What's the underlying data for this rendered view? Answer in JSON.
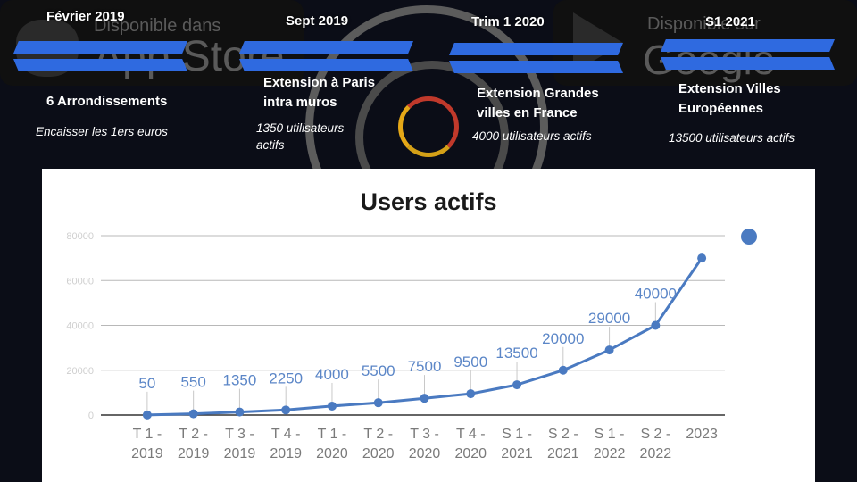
{
  "badges": {
    "apple": {
      "subtitle": "Disponible dans",
      "store": "App Store",
      "icon": "apple-logo-icon"
    },
    "google": {
      "subtitle": "Disponible sur",
      "store": "Google play",
      "icon": "google-play-logo-icon"
    }
  },
  "timeline": [
    {
      "date": "Février 2019",
      "title": "6 Arrondissements",
      "note": "Encaisser les 1ers euros"
    },
    {
      "date": "Sept 2019",
      "title": "Extension à Paris intra muros",
      "note": "1350 utilisateurs actifs"
    },
    {
      "date": "Trim 1 2020",
      "title": "Extension Grandes villes en France",
      "note": "4000 utilisateurs actifs"
    },
    {
      "date": "S1 2021",
      "title": "Extension Villes Européennes",
      "note": "13500 utilisateurs actifs"
    }
  ],
  "colors": {
    "series": "#4a7ac1",
    "ribbon": "#2f6ae0",
    "background": "#0b0d17"
  },
  "chart_data": {
    "type": "line",
    "title": "Users actifs",
    "categories": [
      "T 1 - 2019",
      "T 2 - 2019",
      "T 3 - 2019",
      "T 4 - 2019",
      "T 1 - 2020",
      "T 2 - 2020",
      "T 3 - 2020",
      "T 4 - 2020",
      "S 1 - 2021",
      "S 2 - 2021",
      "S 1 - 2022",
      "S 2 - 2022",
      "2023"
    ],
    "series": [
      {
        "values": [
          50,
          550,
          1350,
          2250,
          4000,
          5500,
          7500,
          9500,
          13500,
          20000,
          29000,
          40000,
          70000
        ]
      }
    ],
    "data_labels": [
      "50",
      "550",
      "1350",
      "2250",
      "4000",
      "5500",
      "7500",
      "9500",
      "13500",
      "20000",
      "29000",
      "40000",
      ""
    ],
    "y_ticks": [
      0,
      20000,
      40000,
      60000,
      80000
    ],
    "ylim": [
      0,
      80000
    ],
    "grid": true,
    "legend": "right"
  }
}
